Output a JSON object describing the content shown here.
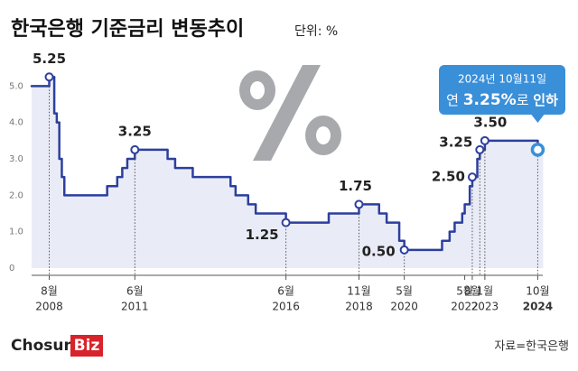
{
  "chart_data": {
    "type": "step",
    "title": "한국은행 기준금리 변동추이",
    "unit": "단위: %",
    "source": "자료=한국은행",
    "logo": [
      "Chosun",
      "Biz"
    ],
    "x": [
      "2008-01",
      "2008-08",
      "2008-10",
      "2008-11",
      "2008-12",
      "2009-01",
      "2009-02",
      "2010-07",
      "2010-11",
      "2011-01",
      "2011-03",
      "2011-06",
      "2012-07",
      "2012-10",
      "2013-05",
      "2014-08",
      "2014-10",
      "2015-03",
      "2015-06",
      "2016-06",
      "2017-11",
      "2018-11",
      "2019-07",
      "2019-10",
      "2020-03",
      "2020-05",
      "2021-08",
      "2021-11",
      "2022-01",
      "2022-04",
      "2022-05",
      "2022-07",
      "2022-08",
      "2022-10",
      "2022-11",
      "2023-01",
      "2024-10"
    ],
    "series": [
      {
        "name": "기준금리",
        "color": "#2d3f9e",
        "values": [
          5.0,
          5.25,
          4.25,
          4.0,
          3.0,
          2.5,
          2.0,
          2.25,
          2.5,
          2.75,
          3.0,
          3.25,
          3.0,
          2.75,
          2.5,
          2.25,
          2.0,
          1.75,
          1.5,
          1.25,
          1.5,
          1.75,
          1.5,
          1.25,
          0.75,
          0.5,
          0.75,
          1.0,
          1.25,
          1.5,
          1.75,
          2.25,
          2.5,
          3.0,
          3.25,
          3.5,
          3.25
        ]
      }
    ],
    "annotations": {
      "x": [
        "2008-08",
        "2011-06",
        "2016-06",
        "2018-11",
        "2020-05",
        "2022-08",
        "2022-11",
        "2023-01",
        "2024-10"
      ],
      "values": [
        5.25,
        3.25,
        1.25,
        1.75,
        0.5,
        2.5,
        3.25,
        3.5,
        3.25
      ],
      "value_labels": [
        "5.25",
        "3.25",
        "1.25",
        "1.75",
        "0.50",
        "2.50",
        "3.25",
        "3.50",
        null
      ]
    },
    "callout": {
      "date": "2024년 10월11일",
      "text": [
        "연 ",
        "3.25%",
        "로 ",
        "인하"
      ]
    },
    "xlim": [
      "2008-01",
      "2024-12"
    ],
    "xticks": [
      {
        "value": "2008-08",
        "label": [
          "8월",
          "2008"
        ]
      },
      {
        "value": "2011-06",
        "label": [
          "6월",
          "2011"
        ]
      },
      {
        "value": "2016-06",
        "label": [
          "6월",
          "2016"
        ]
      },
      {
        "value": "2018-11",
        "label": [
          "11월",
          "2018"
        ]
      },
      {
        "value": "2020-05",
        "label": [
          "5월",
          "2020"
        ]
      },
      {
        "value": "2022-05",
        "label": [
          "5월",
          "2022"
        ]
      },
      {
        "value": "2022-08",
        "label": [
          "8월",
          null
        ]
      },
      {
        "value": "2023-01",
        "label": [
          "1월",
          "2023"
        ]
      },
      {
        "value": "2024-10",
        "label": [
          "10월",
          "2024"
        ]
      }
    ],
    "ylim": [
      0,
      6
    ],
    "yticks": [
      0,
      {
        "value": 1,
        "label": "1.0"
      },
      {
        "value": 2,
        "label": "2.0"
      },
      {
        "value": 3,
        "label": "3.0"
      },
      {
        "value": 4,
        "label": "4.0"
      },
      {
        "value": 5,
        "label": "5.0"
      }
    ],
    "grid": false
  }
}
